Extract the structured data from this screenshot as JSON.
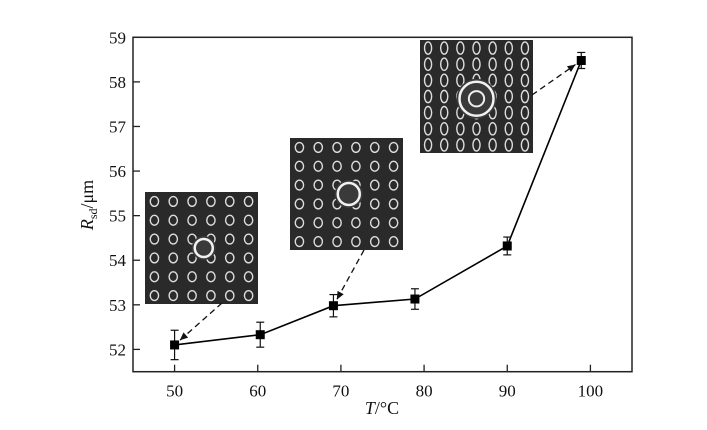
{
  "chart_data": {
    "type": "line",
    "title": "",
    "xlabel_var": "T",
    "xlabel_unit": "/°C",
    "ylabel_var": "R",
    "ylabel_sub": "sd",
    "ylabel_unit": "/μm",
    "xlim": [
      45,
      105
    ],
    "ylim": [
      51.5,
      59
    ],
    "xticks": [
      50,
      60,
      70,
      80,
      90,
      100
    ],
    "yticks": [
      52,
      53,
      54,
      55,
      56,
      57,
      58,
      59
    ],
    "grid": false,
    "marker": "square",
    "line_color": "#000000",
    "series": [
      {
        "x": [
          50,
          60.3,
          69.1,
          78.9,
          90,
          98.9
        ],
        "y": [
          52.1,
          52.33,
          52.98,
          53.13,
          54.32,
          58.48
        ],
        "yerr": [
          0.33,
          0.28,
          0.25,
          0.23,
          0.2,
          0.18
        ]
      }
    ],
    "insets": [
      {
        "image": "micrograph-array-small-rings",
        "points_to_index": 0
      },
      {
        "image": "micrograph-array-medium-rings",
        "points_to_index": 2
      },
      {
        "image": "micrograph-array-large-central-ring",
        "points_to_index": 5
      }
    ]
  }
}
